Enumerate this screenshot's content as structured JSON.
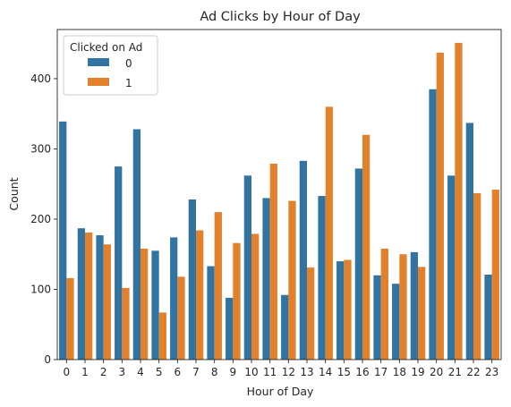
{
  "chart_data": {
    "type": "bar",
    "title": "Ad Clicks by Hour of Day",
    "xlabel": "Hour of Day",
    "ylabel": "Count",
    "categories": [
      "0",
      "1",
      "2",
      "3",
      "4",
      "5",
      "6",
      "7",
      "8",
      "9",
      "10",
      "11",
      "12",
      "13",
      "14",
      "15",
      "16",
      "17",
      "18",
      "19",
      "20",
      "21",
      "22",
      "23"
    ],
    "series": [
      {
        "name": "0",
        "color": "#3274a1",
        "values": [
          339,
          187,
          177,
          275,
          328,
          155,
          174,
          228,
          133,
          88,
          262,
          230,
          92,
          283,
          233,
          140,
          272,
          120,
          108,
          153,
          385,
          262,
          337,
          121
        ]
      },
      {
        "name": "1",
        "color": "#e1812c",
        "values": [
          116,
          181,
          164,
          102,
          158,
          67,
          118,
          184,
          210,
          166,
          179,
          279,
          226,
          131,
          360,
          142,
          320,
          158,
          150,
          132,
          437,
          451,
          237,
          242
        ]
      }
    ],
    "ylim": [
      0,
      470
    ],
    "yticks": [
      0,
      100,
      200,
      300,
      400
    ],
    "grid": false,
    "legend": {
      "title": "Clicked on Ad",
      "placement": "top-left"
    }
  }
}
